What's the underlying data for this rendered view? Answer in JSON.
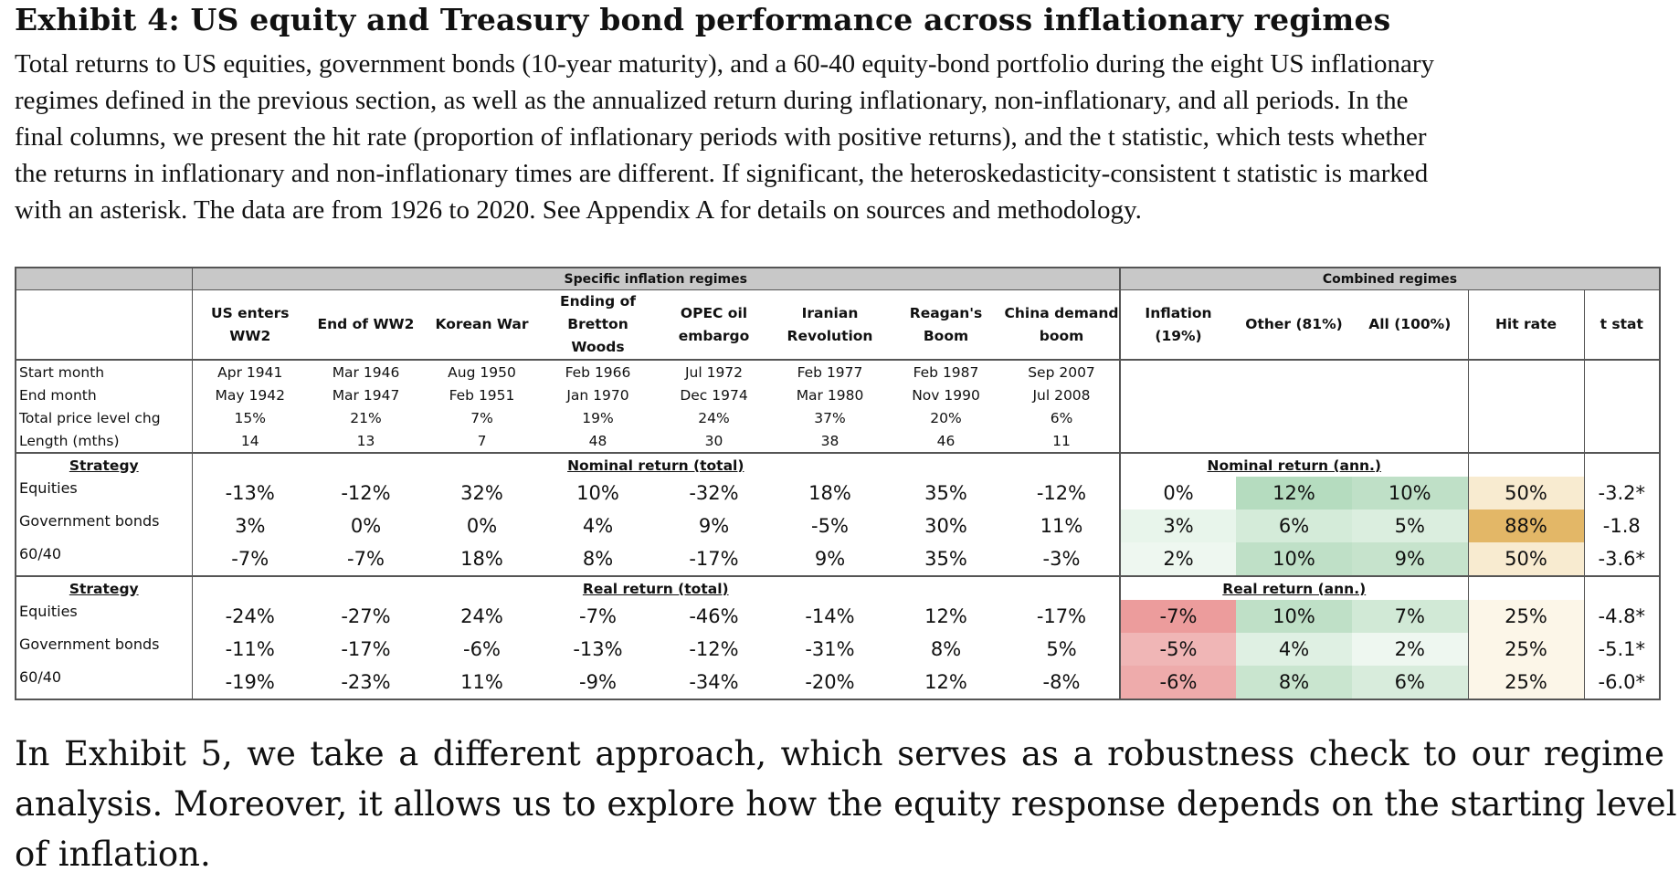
{
  "exhibit": {
    "title": "Exhibit 4: US equity and Treasury bond performance across inflationary regimes",
    "caption_lines": [
      "Total returns to US equities, government bonds (10-year maturity), and a 60-40 equity-bond portfolio during the eight US inflationary",
      "regimes defined in the previous section, as well as the annualized return during inflationary, non-inflationary, and all periods. In the",
      "final columns, we present the hit rate (proportion of inflationary periods with positive returns), and the t statistic, which tests whether",
      "the returns in inflationary and non-inflationary times are different. If significant, the heteroskedasticity-consistent t statistic is marked",
      "with an asterisk. The data are from 1926 to 2020. See Appendix A for details on sources and methodology."
    ]
  },
  "table": {
    "group_headers": {
      "specific": "Specific inflation regimes",
      "combined": "Combined regimes"
    },
    "columns": {
      "regimes": [
        "US enters WW2",
        "End of WW2",
        "Korean War",
        "Ending of Bretton Woods",
        "OPEC oil embargo",
        "Iranian Revolution",
        "Reagan's Boom",
        "China demand boom"
      ],
      "combined": [
        "Inflation (19%)",
        "Other (81%)",
        "All (100%)"
      ],
      "hit_rate": "Hit rate",
      "t_stat": "t stat"
    },
    "meta_rows": [
      {
        "label": "Start month",
        "values": [
          "Apr 1941",
          "Mar 1946",
          "Aug 1950",
          "Feb 1966",
          "Jul 1972",
          "Feb 1977",
          "Feb 1987",
          "Sep 2007"
        ]
      },
      {
        "label": "End month",
        "values": [
          "May 1942",
          "Mar 1947",
          "Feb 1951",
          "Jan 1970",
          "Dec 1974",
          "Mar 1980",
          "Nov 1990",
          "Jul 2008"
        ]
      },
      {
        "label": "Total price level chg",
        "values": [
          "15%",
          "21%",
          "7%",
          "19%",
          "24%",
          "37%",
          "20%",
          "6%"
        ]
      },
      {
        "label": "Length (mths)",
        "values": [
          "14",
          "13",
          "7",
          "48",
          "30",
          "38",
          "46",
          "11"
        ]
      }
    ],
    "sections": [
      {
        "strategy_label": "Strategy",
        "specific_title": "Nominal return (total)",
        "combined_title": "Nominal return (ann.)",
        "rows": [
          {
            "label": "Equities",
            "regimes": [
              "-13%",
              "-12%",
              "32%",
              "10%",
              "-32%",
              "18%",
              "35%",
              "-12%"
            ],
            "combined": [
              "0%",
              "12%",
              "10%"
            ],
            "combined_colors": [
              "#ffffff",
              "#b5dcbf",
              "#bfe0c7"
            ],
            "hit_rate": "50%",
            "hit_color": "#f8ebd0",
            "t_stat": "-3.2*"
          },
          {
            "label": "Government bonds",
            "regimes": [
              "3%",
              "0%",
              "0%",
              "4%",
              "9%",
              "-5%",
              "30%",
              "11%"
            ],
            "combined": [
              "3%",
              "6%",
              "5%"
            ],
            "combined_colors": [
              "#e8f5eb",
              "#d4ebd9",
              "#dbeedf"
            ],
            "hit_rate": "88%",
            "hit_color": "#e3b767",
            "t_stat": "-1.8"
          },
          {
            "label": "60/40",
            "regimes": [
              "-7%",
              "-7%",
              "18%",
              "8%",
              "-17%",
              "9%",
              "35%",
              "-3%"
            ],
            "combined": [
              "2%",
              "10%",
              "9%"
            ],
            "combined_colors": [
              "#eef7f0",
              "#bfe0c7",
              "#c6e3cc"
            ],
            "hit_rate": "50%",
            "hit_color": "#f8ebd0",
            "t_stat": "-3.6*"
          }
        ]
      },
      {
        "strategy_label": "Strategy",
        "specific_title": "Real return (total)",
        "combined_title": "Real return (ann.)",
        "rows": [
          {
            "label": "Equities",
            "regimes": [
              "-24%",
              "-27%",
              "24%",
              "-7%",
              "-46%",
              "-14%",
              "12%",
              "-17%"
            ],
            "combined": [
              "-7%",
              "10%",
              "7%"
            ],
            "combined_colors": [
              "#ec9c9c",
              "#bfe0c7",
              "#d1e9d6"
            ],
            "hit_rate": "25%",
            "hit_color": "#fcf6e8",
            "t_stat": "-4.8*"
          },
          {
            "label": "Government bonds",
            "regimes": [
              "-11%",
              "-17%",
              "-6%",
              "-13%",
              "-12%",
              "-31%",
              "8%",
              "5%"
            ],
            "combined": [
              "-5%",
              "4%",
              "2%"
            ],
            "combined_colors": [
              "#f0b6b6",
              "#dff0e3",
              "#eef7f0"
            ],
            "hit_rate": "25%",
            "hit_color": "#fcf6e8",
            "t_stat": "-5.1*"
          },
          {
            "label": "60/40",
            "regimes": [
              "-19%",
              "-23%",
              "11%",
              "-9%",
              "-34%",
              "-20%",
              "12%",
              "-8%"
            ],
            "combined": [
              "-6%",
              "8%",
              "6%"
            ],
            "combined_colors": [
              "#eeabab",
              "#c9e5cf",
              "#d8ecdc"
            ],
            "hit_rate": "25%",
            "hit_color": "#fcf6e8",
            "t_stat": "-6.0*"
          }
        ]
      }
    ]
  },
  "body_paragraph_lines": [
    "In Exhibit 5, we take a different approach, which serves as a robustness check to our regime",
    "analysis. Moreover, it allows us to explore how the equity response depends on the starting level",
    "of inflation."
  ]
}
